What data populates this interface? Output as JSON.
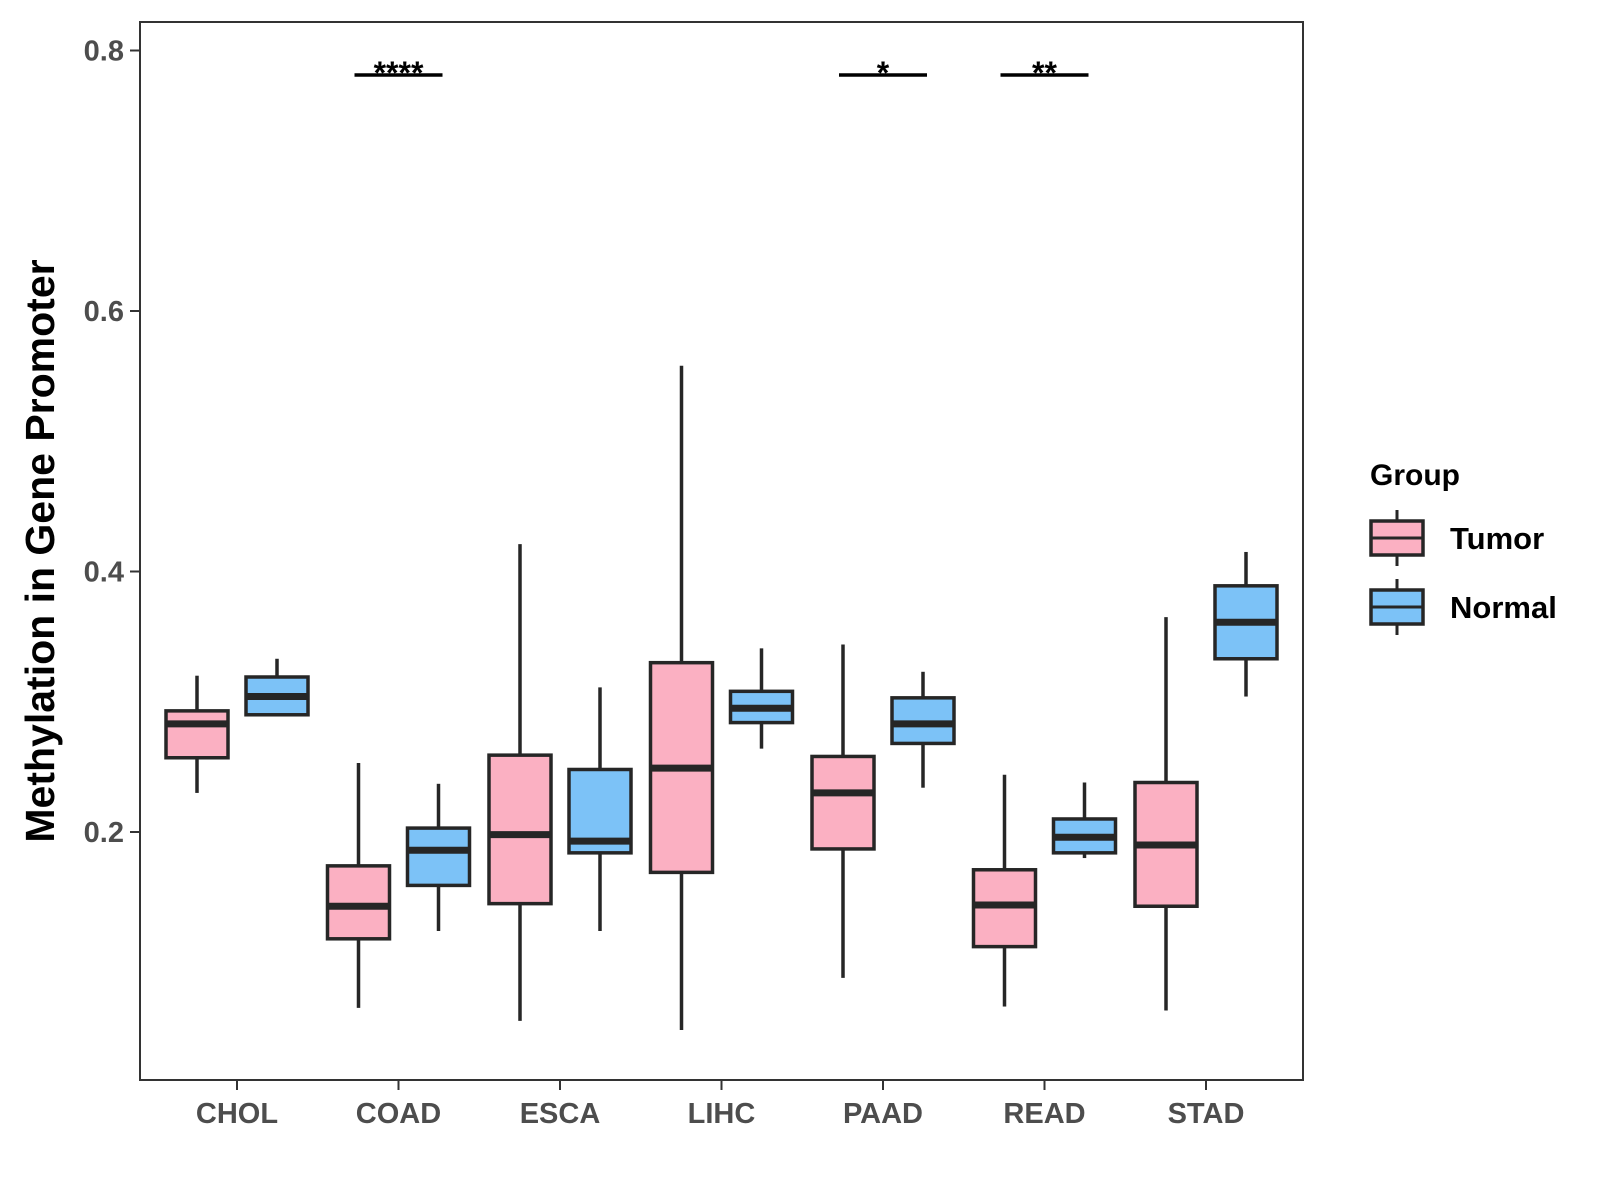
{
  "chart_data": {
    "type": "boxplot",
    "title": "",
    "xlabel": "",
    "ylabel": "Methylation in Gene Promoter",
    "ylim": [
      0.02,
      0.83
    ],
    "yticks": [
      0.2,
      0.4,
      0.6,
      0.8
    ],
    "ytick_labels": [
      "0.2",
      "0.4",
      "0.6",
      "0.8"
    ],
    "categories": [
      "CHOL",
      "COAD",
      "ESCA",
      "LIHC",
      "PAAD",
      "READ",
      "STAD"
    ],
    "legend": {
      "title": "Group",
      "position": "right",
      "entries": [
        {
          "name": "Tumor",
          "color": "#fbb0c2"
        },
        {
          "name": "Normal",
          "color": "#7cc2f7"
        }
      ]
    },
    "series": [
      {
        "name": "Tumor",
        "color": "#fbb0c2",
        "boxes": [
          {
            "category": "CHOL",
            "whisker_low": 0.23,
            "q1": 0.257,
            "median": 0.283,
            "q3": 0.293,
            "whisker_high": 0.32
          },
          {
            "category": "COAD",
            "whisker_low": 0.065,
            "q1": 0.118,
            "median": 0.143,
            "q3": 0.174,
            "whisker_high": 0.253
          },
          {
            "category": "ESCA",
            "whisker_low": 0.055,
            "q1": 0.145,
            "median": 0.198,
            "q3": 0.259,
            "whisker_high": 0.421
          },
          {
            "category": "LIHC",
            "whisker_low": 0.048,
            "q1": 0.169,
            "median": 0.249,
            "q3": 0.33,
            "whisker_high": 0.558
          },
          {
            "category": "PAAD",
            "whisker_low": 0.088,
            "q1": 0.187,
            "median": 0.23,
            "q3": 0.258,
            "whisker_high": 0.344
          },
          {
            "category": "READ",
            "whisker_low": 0.066,
            "q1": 0.112,
            "median": 0.144,
            "q3": 0.171,
            "whisker_high": 0.244
          },
          {
            "category": "STAD",
            "whisker_low": 0.063,
            "q1": 0.143,
            "median": 0.19,
            "q3": 0.238,
            "whisker_high": 0.365
          }
        ]
      },
      {
        "name": "Normal",
        "color": "#7cc2f7",
        "boxes": [
          {
            "category": "CHOL",
            "whisker_low": 0.29,
            "q1": 0.29,
            "median": 0.304,
            "q3": 0.319,
            "whisker_high": 0.333
          },
          {
            "category": "COAD",
            "whisker_low": 0.124,
            "q1": 0.159,
            "median": 0.186,
            "q3": 0.203,
            "whisker_high": 0.237
          },
          {
            "category": "ESCA",
            "whisker_low": 0.124,
            "q1": 0.184,
            "median": 0.193,
            "q3": 0.248,
            "whisker_high": 0.311
          },
          {
            "category": "LIHC",
            "whisker_low": 0.264,
            "q1": 0.284,
            "median": 0.295,
            "q3": 0.308,
            "whisker_high": 0.341
          },
          {
            "category": "PAAD",
            "whisker_low": 0.234,
            "q1": 0.268,
            "median": 0.283,
            "q3": 0.303,
            "whisker_high": 0.323
          },
          {
            "category": "READ",
            "whisker_low": 0.18,
            "q1": 0.184,
            "median": 0.196,
            "q3": 0.21,
            "whisker_high": 0.238
          },
          {
            "category": "STAD",
            "whisker_low": 0.304,
            "q1": 0.333,
            "median": 0.361,
            "q3": 0.389,
            "whisker_high": 0.415
          }
        ]
      }
    ],
    "significance": [
      {
        "category": "COAD",
        "label": "****"
      },
      {
        "category": "PAAD",
        "label": "*"
      },
      {
        "category": "READ",
        "label": "**"
      }
    ]
  }
}
